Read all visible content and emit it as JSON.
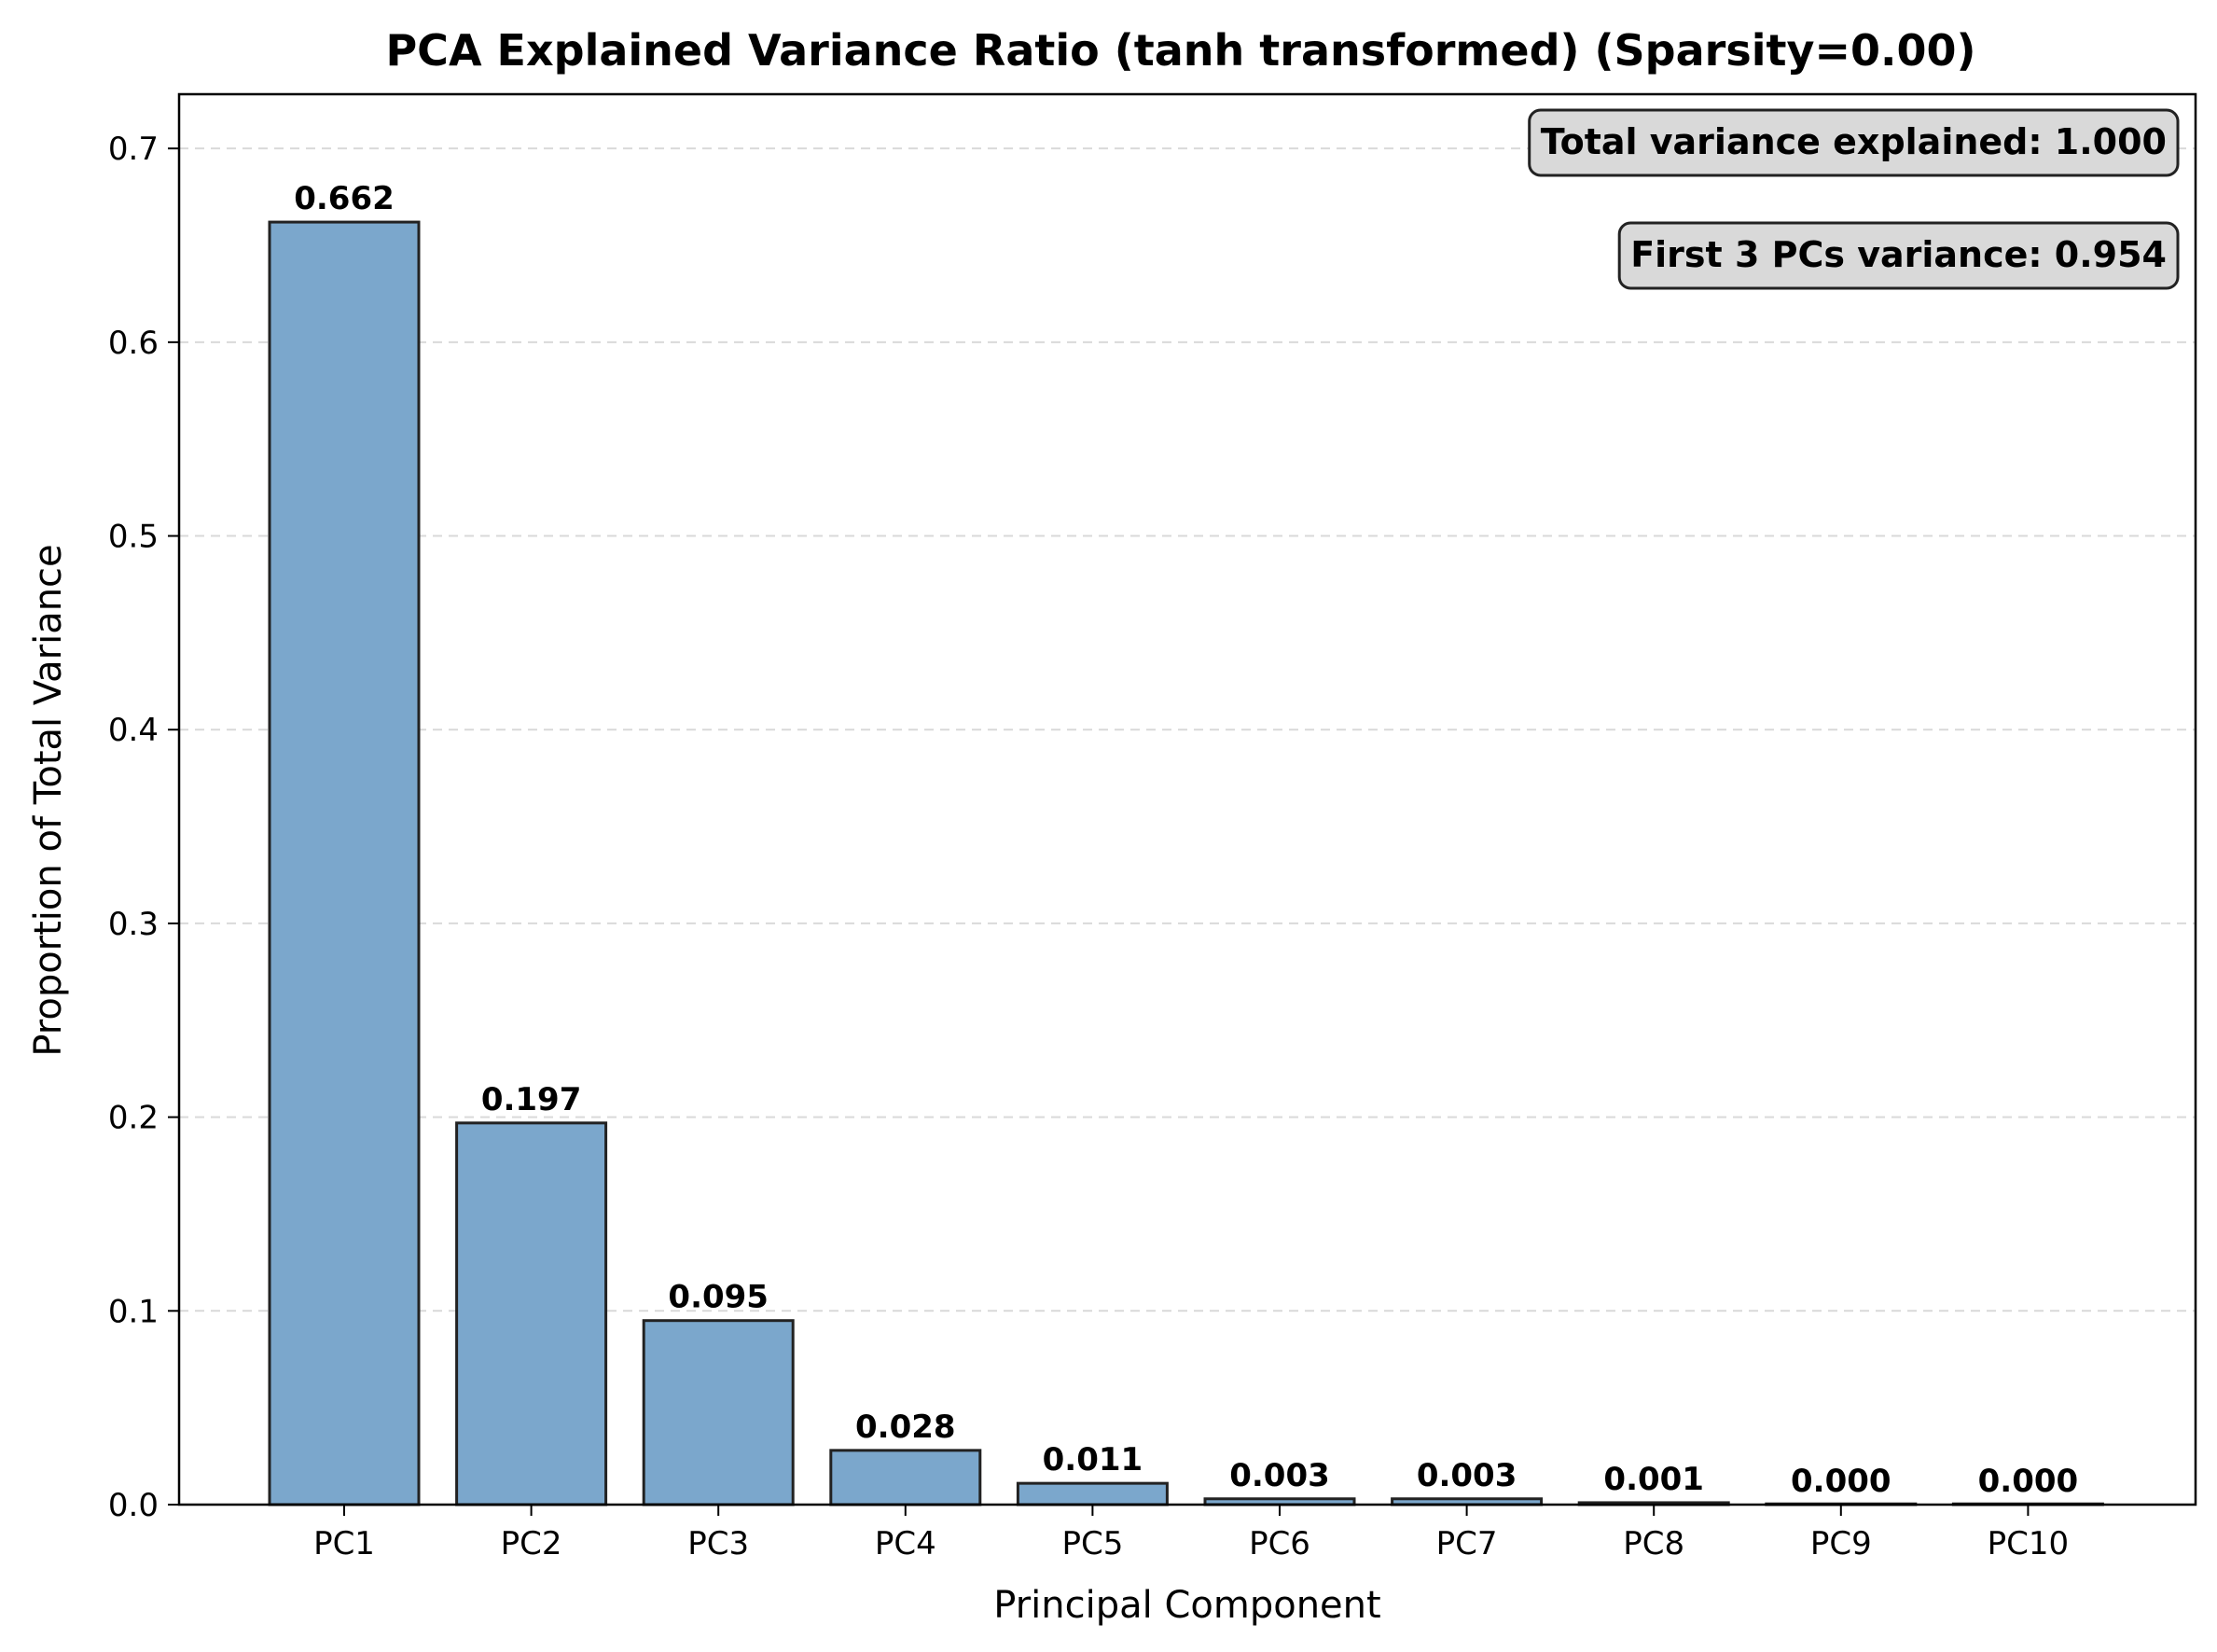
{
  "chart_data": {
    "type": "bar",
    "title": "PCA Explained Variance Ratio (tanh transformed) (Sparsity=0.00)",
    "xlabel": "Principal Component",
    "ylabel": "Proportion of Total Variance",
    "categories": [
      "PC1",
      "PC2",
      "PC3",
      "PC4",
      "PC5",
      "PC6",
      "PC7",
      "PC8",
      "PC9",
      "PC10"
    ],
    "values": [
      0.662,
      0.197,
      0.095,
      0.028,
      0.011,
      0.003,
      0.003,
      0.001,
      0.0,
      0.0
    ],
    "value_labels": [
      "0.662",
      "0.197",
      "0.095",
      "0.028",
      "0.011",
      "0.003",
      "0.003",
      "0.001",
      "0.000",
      "0.000"
    ],
    "ylim": [
      0,
      0.728
    ],
    "yticks": [
      0.0,
      0.1,
      0.2,
      0.3,
      0.4,
      0.5,
      0.6,
      0.7
    ],
    "ytick_labels": [
      "0.0",
      "0.1",
      "0.2",
      "0.3",
      "0.4",
      "0.5",
      "0.6",
      "0.7"
    ],
    "grid": "y-dashed",
    "bar_color": "#7ba7cc",
    "bar_edge_color": "#222222",
    "annotations": [
      "Total variance explained: 1.000",
      "First 3 PCs variance: 0.954"
    ]
  }
}
